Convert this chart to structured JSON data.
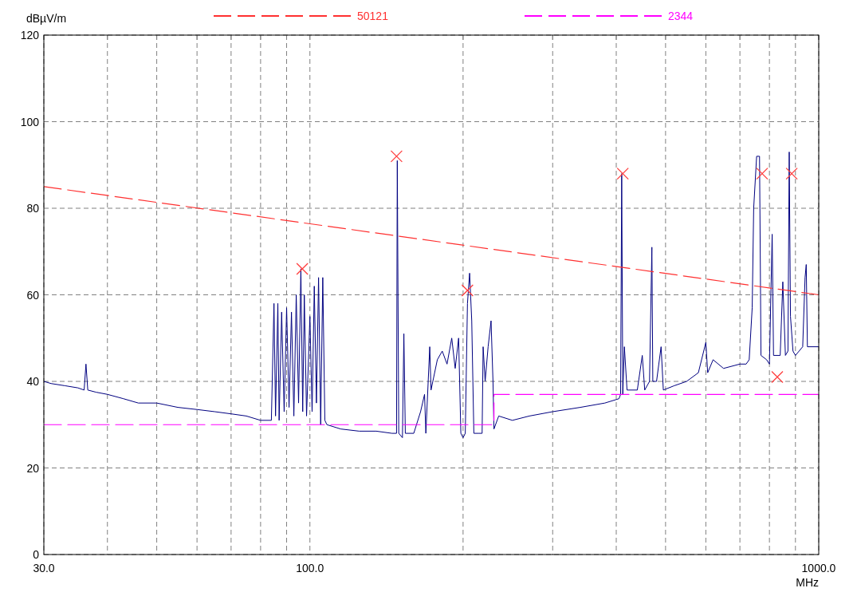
{
  "chart_data": {
    "type": "line",
    "xlabel": "MHz",
    "ylabel": "dBµV/m",
    "log": "x",
    "grid": true,
    "legend": "top",
    "xlim": [
      30,
      1000
    ],
    "ylim": [
      0,
      120
    ],
    "xticks": [
      {
        "value": 30,
        "label": "30.0"
      },
      {
        "value": 40,
        "label": null
      },
      {
        "value": 50,
        "label": null
      },
      {
        "value": 60,
        "label": null
      },
      {
        "value": 70,
        "label": null
      },
      {
        "value": 80,
        "label": null
      },
      {
        "value": 90,
        "label": null
      },
      {
        "value": 100,
        "label": "100.0"
      },
      {
        "value": 200,
        "label": null
      },
      {
        "value": 300,
        "label": null
      },
      {
        "value": 400,
        "label": null
      },
      {
        "value": 500,
        "label": null
      },
      {
        "value": 600,
        "label": null
      },
      {
        "value": 700,
        "label": null
      },
      {
        "value": 800,
        "label": null
      },
      {
        "value": 900,
        "label": null
      },
      {
        "value": 1000,
        "label": "1000.0"
      }
    ],
    "yticks": [
      0,
      20,
      40,
      60,
      80,
      100,
      120
    ],
    "series": [
      {
        "color": "#000080",
        "line_style": "solid",
        "x": [
          30,
          31,
          33,
          35,
          36,
          36.3,
          36.6,
          38,
          40,
          43,
          46,
          50,
          55,
          60,
          65,
          70,
          75,
          80,
          84,
          85,
          85.6,
          86.5,
          87,
          88,
          89,
          90,
          91,
          92,
          93,
          94,
          95,
          96,
          96.8,
          97.5,
          98.5,
          100,
          101,
          102,
          103,
          104,
          105,
          106,
          107,
          108,
          115,
          125,
          135,
          145,
          148,
          148.5,
          149.5,
          152,
          153,
          154,
          160,
          165,
          168,
          169,
          172,
          173,
          178,
          182,
          186,
          190,
          193,
          196,
          198,
          200,
          202,
          204,
          206,
          208,
          210,
          215,
          218,
          219,
          221,
          224,
          227,
          229,
          230,
          235,
          250,
          270,
          300,
          340,
          380,
          405,
          408,
          410,
          412,
          415,
          420,
          440,
          450,
          455,
          465,
          470,
          472,
          480,
          490,
          495,
          520,
          550,
          580,
          600,
          605,
          620,
          650,
          700,
          720,
          730,
          740,
          745,
          755,
          765,
          770,
          790,
          800,
          810,
          815,
          840,
          850,
          860,
          870,
          875,
          880,
          890,
          900,
          930,
          940,
          945,
          950,
          1000
        ],
        "values": [
          40,
          39.5,
          39,
          38.5,
          38,
          44,
          38,
          37.5,
          37,
          36,
          35,
          35,
          34,
          33.5,
          33,
          32.5,
          32,
          31,
          31,
          58,
          32,
          58,
          31,
          56,
          33,
          57,
          34,
          56,
          32,
          60,
          35,
          66,
          33,
          60,
          32,
          55,
          33,
          62,
          35,
          64,
          30,
          64,
          31,
          30,
          29,
          28.5,
          28.5,
          28,
          28,
          91,
          28,
          27,
          51,
          28,
          28,
          33,
          37,
          28,
          48,
          38,
          45,
          47,
          44,
          50,
          43,
          50,
          28,
          27,
          28,
          58,
          65,
          54,
          28,
          28,
          28,
          48,
          40,
          48,
          54,
          40,
          29,
          32,
          31,
          32,
          33,
          34,
          35,
          36,
          37,
          88,
          37,
          48,
          38,
          38,
          46,
          38,
          40,
          71,
          40,
          40,
          48,
          38,
          39,
          40,
          42,
          49,
          42,
          45,
          43,
          44,
          44,
          45,
          57,
          80,
          92,
          92,
          46,
          45,
          44,
          74,
          46,
          46,
          63,
          46,
          47,
          93,
          55,
          47,
          46,
          48,
          64,
          67,
          48,
          48
        ]
      },
      {
        "type": "line",
        "name": "50121",
        "color": "#ff3030",
        "line_style": "dashed",
        "x": [
          30,
          1000
        ],
        "values": [
          85,
          60
        ]
      },
      {
        "type": "step",
        "name": "2344",
        "color": "#ff00ff",
        "line_style": "dashed",
        "x": [
          30,
          230,
          1000
        ],
        "values": [
          30,
          37,
          37
        ]
      },
      {
        "type": "scatter",
        "color": "#ff4040",
        "marker": "cross",
        "x": [
          96.6,
          148,
          204,
          412,
          774,
          829,
          885
        ],
        "values": [
          66,
          92,
          61,
          88,
          88,
          41,
          88
        ]
      }
    ]
  }
}
